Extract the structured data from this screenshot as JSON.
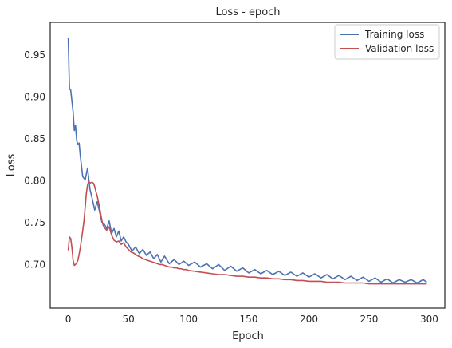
{
  "chart_data": {
    "type": "line",
    "title": "Loss - epoch",
    "xlabel": "Epoch",
    "ylabel": "Loss",
    "xlim": [
      -15,
      313
    ],
    "ylim": [
      0.648,
      0.989
    ],
    "xticks": [
      0,
      50,
      100,
      150,
      200,
      250,
      300
    ],
    "yticks": [
      0.7,
      0.75,
      0.8,
      0.85,
      0.9,
      0.95
    ],
    "grid": false,
    "legend_position": "top-right",
    "series": [
      {
        "name": "Training loss",
        "color": "#4c72b0",
        "points": [
          [
            0,
            0.97
          ],
          [
            1,
            0.91
          ],
          [
            2,
            0.908
          ],
          [
            3,
            0.895
          ],
          [
            4,
            0.882
          ],
          [
            5,
            0.86
          ],
          [
            6,
            0.866
          ],
          [
            7,
            0.848
          ],
          [
            8,
            0.843
          ],
          [
            9,
            0.845
          ],
          [
            10,
            0.83
          ],
          [
            12,
            0.805
          ],
          [
            14,
            0.801
          ],
          [
            16,
            0.815
          ],
          [
            18,
            0.79
          ],
          [
            20,
            0.778
          ],
          [
            22,
            0.765
          ],
          [
            24,
            0.775
          ],
          [
            26,
            0.763
          ],
          [
            28,
            0.75
          ],
          [
            30,
            0.748
          ],
          [
            32,
            0.743
          ],
          [
            34,
            0.752
          ],
          [
            36,
            0.737
          ],
          [
            38,
            0.743
          ],
          [
            40,
            0.733
          ],
          [
            42,
            0.74
          ],
          [
            44,
            0.728
          ],
          [
            46,
            0.733
          ],
          [
            48,
            0.727
          ],
          [
            50,
            0.724
          ],
          [
            53,
            0.716
          ],
          [
            56,
            0.721
          ],
          [
            59,
            0.713
          ],
          [
            62,
            0.718
          ],
          [
            65,
            0.711
          ],
          [
            68,
            0.715
          ],
          [
            71,
            0.707
          ],
          [
            74,
            0.712
          ],
          [
            77,
            0.703
          ],
          [
            80,
            0.71
          ],
          [
            84,
            0.701
          ],
          [
            88,
            0.706
          ],
          [
            92,
            0.7
          ],
          [
            96,
            0.704
          ],
          [
            100,
            0.699
          ],
          [
            105,
            0.703
          ],
          [
            110,
            0.697
          ],
          [
            115,
            0.701
          ],
          [
            120,
            0.695
          ],
          [
            125,
            0.7
          ],
          [
            130,
            0.693
          ],
          [
            135,
            0.698
          ],
          [
            140,
            0.692
          ],
          [
            145,
            0.696
          ],
          [
            150,
            0.69
          ],
          [
            155,
            0.694
          ],
          [
            160,
            0.689
          ],
          [
            165,
            0.693
          ],
          [
            170,
            0.688
          ],
          [
            175,
            0.692
          ],
          [
            180,
            0.687
          ],
          [
            185,
            0.691
          ],
          [
            190,
            0.686
          ],
          [
            195,
            0.69
          ],
          [
            200,
            0.685
          ],
          [
            205,
            0.689
          ],
          [
            210,
            0.684
          ],
          [
            215,
            0.688
          ],
          [
            220,
            0.683
          ],
          [
            225,
            0.687
          ],
          [
            230,
            0.682
          ],
          [
            235,
            0.686
          ],
          [
            240,
            0.681
          ],
          [
            245,
            0.685
          ],
          [
            250,
            0.68
          ],
          [
            255,
            0.684
          ],
          [
            260,
            0.679
          ],
          [
            265,
            0.683
          ],
          [
            270,
            0.678
          ],
          [
            275,
            0.682
          ],
          [
            280,
            0.679
          ],
          [
            285,
            0.682
          ],
          [
            290,
            0.678
          ],
          [
            295,
            0.682
          ],
          [
            298,
            0.679
          ]
        ]
      },
      {
        "name": "Validation loss",
        "color": "#c44e52",
        "points": [
          [
            0,
            0.717
          ],
          [
            1,
            0.733
          ],
          [
            2,
            0.731
          ],
          [
            3,
            0.72
          ],
          [
            4,
            0.705
          ],
          [
            5,
            0.699
          ],
          [
            6,
            0.7
          ],
          [
            7,
            0.702
          ],
          [
            8,
            0.705
          ],
          [
            9,
            0.712
          ],
          [
            10,
            0.72
          ],
          [
            11,
            0.73
          ],
          [
            12,
            0.74
          ],
          [
            13,
            0.752
          ],
          [
            14,
            0.768
          ],
          [
            15,
            0.785
          ],
          [
            16,
            0.795
          ],
          [
            17,
            0.799
          ],
          [
            18,
            0.797
          ],
          [
            19,
            0.798
          ],
          [
            20,
            0.798
          ],
          [
            21,
            0.797
          ],
          [
            22,
            0.793
          ],
          [
            23,
            0.787
          ],
          [
            24,
            0.782
          ],
          [
            25,
            0.775
          ],
          [
            26,
            0.768
          ],
          [
            27,
            0.76
          ],
          [
            28,
            0.752
          ],
          [
            29,
            0.747
          ],
          [
            30,
            0.744
          ],
          [
            32,
            0.741
          ],
          [
            34,
            0.745
          ],
          [
            36,
            0.735
          ],
          [
            38,
            0.729
          ],
          [
            40,
            0.727
          ],
          [
            42,
            0.728
          ],
          [
            44,
            0.724
          ],
          [
            46,
            0.726
          ],
          [
            48,
            0.721
          ],
          [
            50,
            0.718
          ],
          [
            52,
            0.715
          ],
          [
            54,
            0.714
          ],
          [
            56,
            0.712
          ],
          [
            58,
            0.71
          ],
          [
            60,
            0.709
          ],
          [
            62,
            0.707
          ],
          [
            64,
            0.706
          ],
          [
            66,
            0.705
          ],
          [
            68,
            0.704
          ],
          [
            70,
            0.703
          ],
          [
            72,
            0.702
          ],
          [
            74,
            0.701
          ],
          [
            76,
            0.7
          ],
          [
            78,
            0.7
          ],
          [
            80,
            0.699
          ],
          [
            82,
            0.698
          ],
          [
            84,
            0.697
          ],
          [
            86,
            0.697
          ],
          [
            88,
            0.696
          ],
          [
            90,
            0.696
          ],
          [
            92,
            0.695
          ],
          [
            94,
            0.695
          ],
          [
            96,
            0.694
          ],
          [
            98,
            0.694
          ],
          [
            100,
            0.693
          ],
          [
            105,
            0.692
          ],
          [
            110,
            0.691
          ],
          [
            115,
            0.69
          ],
          [
            120,
            0.689
          ],
          [
            125,
            0.688
          ],
          [
            130,
            0.688
          ],
          [
            135,
            0.687
          ],
          [
            140,
            0.686
          ],
          [
            145,
            0.686
          ],
          [
            150,
            0.685
          ],
          [
            155,
            0.685
          ],
          [
            160,
            0.684
          ],
          [
            165,
            0.684
          ],
          [
            170,
            0.683
          ],
          [
            175,
            0.683
          ],
          [
            180,
            0.682
          ],
          [
            185,
            0.682
          ],
          [
            190,
            0.681
          ],
          [
            195,
            0.681
          ],
          [
            200,
            0.68
          ],
          [
            205,
            0.68
          ],
          [
            210,
            0.68
          ],
          [
            215,
            0.679
          ],
          [
            220,
            0.679
          ],
          [
            225,
            0.679
          ],
          [
            230,
            0.678
          ],
          [
            235,
            0.678
          ],
          [
            240,
            0.678
          ],
          [
            245,
            0.678
          ],
          [
            250,
            0.677
          ],
          [
            255,
            0.677
          ],
          [
            260,
            0.677
          ],
          [
            265,
            0.677
          ],
          [
            270,
            0.677
          ],
          [
            275,
            0.677
          ],
          [
            280,
            0.677
          ],
          [
            285,
            0.677
          ],
          [
            290,
            0.677
          ],
          [
            295,
            0.677
          ],
          [
            298,
            0.677
          ]
        ]
      }
    ]
  }
}
